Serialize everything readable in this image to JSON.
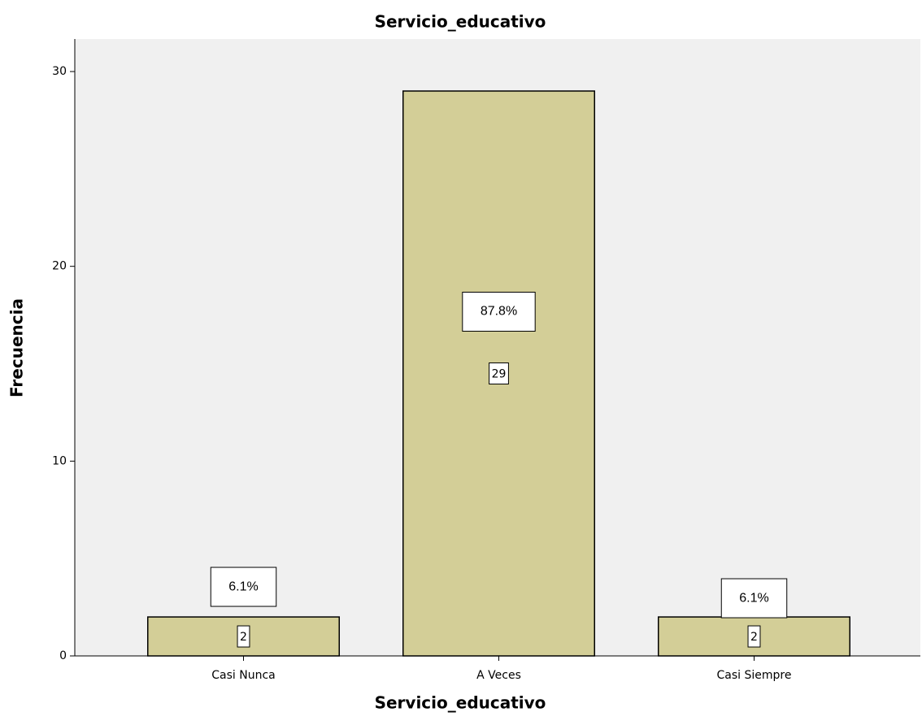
{
  "chart_data": {
    "type": "bar",
    "title": "Servicio_educativo",
    "x_label": "Servicio_educativo",
    "y_label": "Frecuencia",
    "categories": [
      "Casi Nunca",
      "A Veces",
      "Casi Siempre"
    ],
    "values": [
      2,
      29,
      2
    ],
    "percent_labels": [
      "6.1%",
      "87.8%",
      "6.1%"
    ],
    "color": "#d3ce97",
    "ylim": [
      0,
      31.67
    ],
    "yticks": [
      0,
      10,
      20,
      30
    ],
    "grid": false
  }
}
